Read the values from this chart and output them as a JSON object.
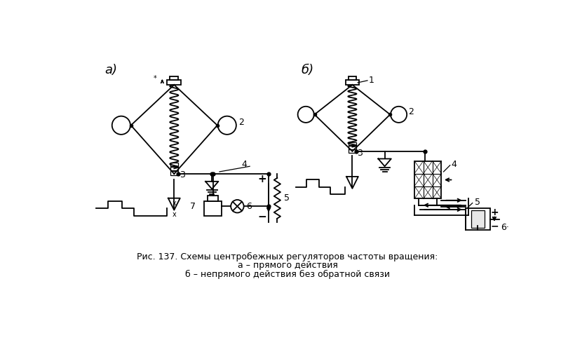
{
  "title_line1": "Рис. 137. Схемы центробежных регуляторов частоты вращения:",
  "title_line2": "а – прямого действия",
  "title_line3": "б – непрямого действия без обратной связи",
  "bg_color": "#ffffff",
  "line_color": "#000000",
  "label_a": "а)",
  "label_b": "б)",
  "font_size": 9,
  "title_font_size": 9
}
